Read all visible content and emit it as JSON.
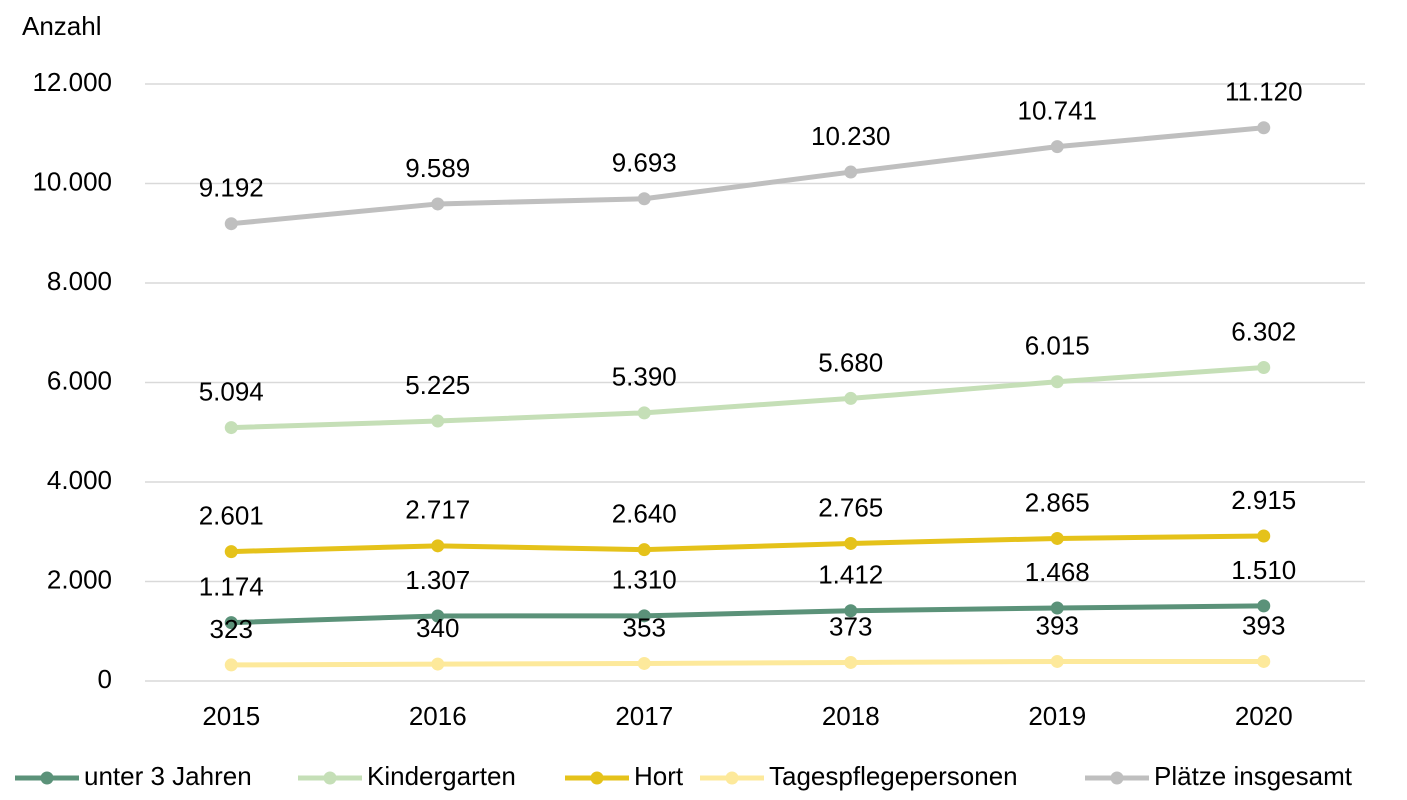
{
  "chart_data": {
    "type": "line",
    "y_axis_label": "Anzahl",
    "categories": [
      "2015",
      "2016",
      "2017",
      "2018",
      "2019",
      "2020"
    ],
    "ylim": [
      0,
      12000
    ],
    "yticks": [
      0,
      {
        "value": 2000,
        "label": "2.000"
      },
      {
        "value": 4000,
        "label": "4.000"
      },
      {
        "value": 6000,
        "label": "6.000"
      },
      {
        "value": 8000,
        "label": "8.000"
      },
      {
        "value": 10000,
        "label": "10.000"
      },
      {
        "value": 12000,
        "label": "12.000"
      }
    ],
    "grid": true,
    "legend": "bottom",
    "series": [
      {
        "name": "unter 3 Jahren",
        "color": "#5b9279",
        "values": [
          1174,
          1307,
          1310,
          1412,
          1468,
          1510
        ],
        "value_labels": [
          "1.174",
          "1.307",
          "1.310",
          "1.412",
          "1.468",
          "1.510"
        ]
      },
      {
        "name": "Kindergarten",
        "color": "#c5dfb7",
        "values": [
          5094,
          5225,
          5390,
          5680,
          6015,
          6302
        ],
        "value_labels": [
          "5.094",
          "5.225",
          "5.390",
          "5.680",
          "6.015",
          "6.302"
        ]
      },
      {
        "name": "Hort",
        "color": "#e5c21a",
        "values": [
          2601,
          2717,
          2640,
          2765,
          2865,
          2915
        ],
        "value_labels": [
          "2.601",
          "2.717",
          "2.640",
          "2.765",
          "2.865",
          "2.915"
        ]
      },
      {
        "name": "Tagespflegepersonen",
        "color": "#fde99b",
        "values": [
          323,
          340,
          353,
          373,
          393,
          393
        ]
      },
      {
        "name": "Plätze insgesamt",
        "color": "#bfbfbf",
        "values": [
          9192,
          9589,
          9693,
          10230,
          10741,
          11120
        ],
        "value_labels": [
          "9.192",
          "9.589",
          "9.693",
          "10.230",
          "10.741",
          "11.120"
        ]
      }
    ]
  }
}
